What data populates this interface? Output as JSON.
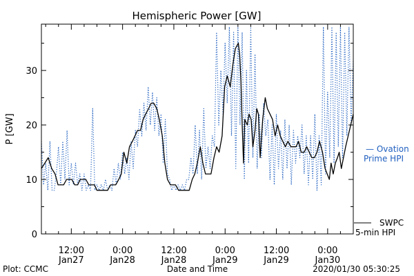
{
  "chart_data": {
    "type": "line",
    "title": "Hemispheric Power [GW]",
    "xlabel": "Date and Time",
    "ylabel": "P [GW]",
    "ylim": [
      0,
      38.5
    ],
    "yticks": [
      0,
      10,
      20,
      30
    ],
    "x_unit": "hours since 2020-01-26 00:00",
    "xlim": [
      29,
      102
    ],
    "xticks": [
      {
        "x": 36,
        "time": "12:00",
        "date": "Jan27"
      },
      {
        "x": 48,
        "time": "0:00",
        "date": "Jan28"
      },
      {
        "x": 60,
        "time": "12:00",
        "date": "Jan28"
      },
      {
        "x": 72,
        "time": "0:00",
        "date": "Jan29"
      },
      {
        "x": 84,
        "time": "12:00",
        "date": "Jan29"
      },
      {
        "x": 96,
        "time": "0:00",
        "date": "Jan30"
      }
    ],
    "grid": false,
    "series": [
      {
        "name": "Ovation Prime HPI",
        "color": "#1f5fbf",
        "style": "dotted",
        "legend_line1": "— Ovation",
        "legend_line2": "Prime HPI",
        "points": [
          [
            29,
            17
          ],
          [
            29.5,
            9
          ],
          [
            30,
            13
          ],
          [
            30.5,
            8
          ],
          [
            31,
            17
          ],
          [
            31.5,
            8
          ],
          [
            32,
            8
          ],
          [
            32.5,
            11
          ],
          [
            33,
            16
          ],
          [
            33.5,
            9
          ],
          [
            34,
            17
          ],
          [
            34.5,
            10
          ],
          [
            35,
            19
          ],
          [
            35.5,
            9
          ],
          [
            36,
            13
          ],
          [
            36.5,
            9
          ],
          [
            37,
            13
          ],
          [
            37.5,
            9
          ],
          [
            38,
            11
          ],
          [
            38.5,
            8
          ],
          [
            39,
            11
          ],
          [
            39.5,
            8
          ],
          [
            40,
            9
          ],
          [
            40.5,
            8
          ],
          [
            41,
            23
          ],
          [
            41.5,
            8
          ],
          [
            42,
            9
          ],
          [
            42.5,
            8
          ],
          [
            43,
            9
          ],
          [
            43.5,
            8
          ],
          [
            44,
            10
          ],
          [
            44.5,
            8
          ],
          [
            45,
            9
          ],
          [
            45.5,
            8
          ],
          [
            46,
            12
          ],
          [
            46.5,
            9
          ],
          [
            47,
            13
          ],
          [
            47.5,
            10
          ],
          [
            48,
            15
          ],
          [
            48.5,
            11
          ],
          [
            49,
            14
          ],
          [
            49.5,
            10
          ],
          [
            50,
            17
          ],
          [
            50.5,
            12
          ],
          [
            51,
            19
          ],
          [
            51.5,
            16
          ],
          [
            52,
            23
          ],
          [
            52.5,
            18
          ],
          [
            53,
            24
          ],
          [
            53.5,
            19
          ],
          [
            54,
            27
          ],
          [
            54.5,
            20
          ],
          [
            55,
            26
          ],
          [
            55.5,
            19
          ],
          [
            56,
            25
          ],
          [
            56.5,
            18
          ],
          [
            57,
            22
          ],
          [
            57.5,
            13
          ],
          [
            58,
            21
          ],
          [
            58.5,
            11
          ],
          [
            59,
            10
          ],
          [
            59.5,
            8
          ],
          [
            60,
            9
          ],
          [
            60.5,
            8
          ],
          [
            61,
            9
          ],
          [
            61.5,
            8
          ],
          [
            62,
            9
          ],
          [
            62.5,
            8
          ],
          [
            63,
            10
          ],
          [
            63.5,
            10
          ],
          [
            64,
            14
          ],
          [
            64.5,
            11
          ],
          [
            65,
            20
          ],
          [
            65.5,
            11
          ],
          [
            66,
            19
          ],
          [
            66.5,
            10
          ],
          [
            67,
            23
          ],
          [
            67.5,
            12
          ],
          [
            68,
            16
          ],
          [
            68.5,
            12
          ],
          [
            69,
            18
          ],
          [
            69.5,
            16
          ],
          [
            70,
            37
          ],
          [
            70.5,
            20
          ],
          [
            71,
            30
          ],
          [
            71.5,
            22
          ],
          [
            72,
            35
          ],
          [
            72.5,
            24
          ],
          [
            73,
            38
          ],
          [
            73.5,
            18
          ],
          [
            74,
            37
          ],
          [
            74.5,
            12
          ],
          [
            75,
            38
          ],
          [
            75.5,
            20
          ],
          [
            76,
            37
          ],
          [
            76.5,
            10
          ],
          [
            77,
            30
          ],
          [
            77.5,
            13
          ],
          [
            78,
            38
          ],
          [
            78.5,
            14
          ],
          [
            79,
            33
          ],
          [
            79.5,
            12
          ],
          [
            80,
            22
          ],
          [
            80.5,
            14
          ],
          [
            81,
            24
          ],
          [
            81.5,
            18
          ],
          [
            82,
            21
          ],
          [
            82.5,
            10
          ],
          [
            83,
            20
          ],
          [
            83.5,
            9
          ],
          [
            84,
            22
          ],
          [
            84.5,
            12
          ],
          [
            85,
            19
          ],
          [
            85.5,
            10
          ],
          [
            86,
            21
          ],
          [
            86.5,
            12
          ],
          [
            87,
            20
          ],
          [
            87.5,
            9
          ],
          [
            88,
            19
          ],
          [
            88.5,
            13
          ],
          [
            89,
            18
          ],
          [
            89.5,
            14
          ],
          [
            90,
            20
          ],
          [
            90.5,
            11
          ],
          [
            91,
            18
          ],
          [
            91.5,
            9
          ],
          [
            92,
            18
          ],
          [
            92.5,
            10
          ],
          [
            93,
            22
          ],
          [
            93.5,
            8
          ],
          [
            94,
            18
          ],
          [
            94.5,
            9
          ],
          [
            95,
            38
          ],
          [
            95.5,
            11
          ],
          [
            96,
            26
          ],
          [
            96.5,
            14
          ],
          [
            97,
            38
          ],
          [
            97.5,
            13
          ],
          [
            98,
            37
          ],
          [
            98.5,
            16
          ],
          [
            99,
            38
          ],
          [
            99.5,
            14
          ],
          [
            100,
            37
          ],
          [
            100.5,
            18
          ],
          [
            101,
            38
          ],
          [
            101.5,
            20
          ],
          [
            102,
            32
          ]
        ]
      },
      {
        "name": "SWPC 5-min HPI",
        "color": "#000000",
        "style": "solid",
        "legend_line1": "SWPC",
        "legend_line2": "5-min HPI",
        "points": [
          [
            29,
            12
          ],
          [
            29.8,
            13
          ],
          [
            30.6,
            14
          ],
          [
            31.4,
            12
          ],
          [
            32.2,
            11
          ],
          [
            32.9,
            9
          ],
          [
            33.5,
            9
          ],
          [
            34.2,
            9
          ],
          [
            34.9,
            10
          ],
          [
            35.5,
            10
          ],
          [
            36.1,
            10
          ],
          [
            36.8,
            9
          ],
          [
            37.5,
            9
          ],
          [
            38.1,
            10
          ],
          [
            38.8,
            10
          ],
          [
            39.4,
            10
          ],
          [
            40.1,
            9
          ],
          [
            40.8,
            9
          ],
          [
            41.4,
            9
          ],
          [
            42,
            8
          ],
          [
            42.6,
            8
          ],
          [
            43.2,
            8
          ],
          [
            43.9,
            8
          ],
          [
            44.5,
            8
          ],
          [
            45.2,
            9
          ],
          [
            45.8,
            9
          ],
          [
            46.4,
            9
          ],
          [
            47.1,
            10
          ],
          [
            47.7,
            11
          ],
          [
            48.3,
            15
          ],
          [
            49,
            13
          ],
          [
            49.6,
            16
          ],
          [
            50.3,
            17
          ],
          [
            50.9,
            18
          ],
          [
            51.5,
            19
          ],
          [
            52.2,
            19
          ],
          [
            52.8,
            21
          ],
          [
            53.4,
            22
          ],
          [
            54.1,
            23
          ],
          [
            54.7,
            24
          ],
          [
            55.3,
            24
          ],
          [
            56,
            23
          ],
          [
            56.6,
            21
          ],
          [
            57.3,
            18
          ],
          [
            57.9,
            13
          ],
          [
            58.5,
            10
          ],
          [
            59.2,
            9
          ],
          [
            59.8,
            9
          ],
          [
            60.4,
            9
          ],
          [
            61.1,
            8
          ],
          [
            61.7,
            8
          ],
          [
            62.3,
            8
          ],
          [
            63,
            8
          ],
          [
            63.6,
            8
          ],
          [
            64.3,
            10
          ],
          [
            64.9,
            11
          ],
          [
            65.5,
            13
          ],
          [
            66.2,
            16
          ],
          [
            66.8,
            13
          ],
          [
            67.4,
            11
          ],
          [
            68.1,
            11
          ],
          [
            68.7,
            11
          ],
          [
            69.4,
            14
          ],
          [
            70,
            16
          ],
          [
            70.6,
            15
          ],
          [
            71.3,
            18
          ],
          [
            71.9,
            27
          ],
          [
            72.5,
            29
          ],
          [
            73.2,
            27
          ],
          [
            73.8,
            31
          ],
          [
            74.4,
            34
          ],
          [
            75.1,
            35
          ],
          [
            75.4,
            33
          ],
          [
            75.7,
            28
          ],
          [
            76,
            20
          ],
          [
            76.3,
            13
          ],
          [
            76.6,
            21
          ],
          [
            77.2,
            20
          ],
          [
            77.6,
            22
          ],
          [
            78.1,
            21
          ],
          [
            78.5,
            16
          ],
          [
            79,
            19
          ],
          [
            79.4,
            23
          ],
          [
            79.8,
            22
          ],
          [
            80.2,
            14
          ],
          [
            80.8,
            21
          ],
          [
            81.4,
            25
          ],
          [
            81.9,
            23
          ],
          [
            82.5,
            22
          ],
          [
            83.1,
            21
          ],
          [
            83.7,
            18
          ],
          [
            84.3,
            20
          ],
          [
            84.9,
            18
          ],
          [
            85.5,
            17
          ],
          [
            86.1,
            16
          ],
          [
            86.7,
            17
          ],
          [
            87.4,
            16
          ],
          [
            88,
            16
          ],
          [
            88.6,
            16
          ],
          [
            89.2,
            17
          ],
          [
            89.8,
            15
          ],
          [
            90.5,
            15
          ],
          [
            91.1,
            16
          ],
          [
            91.7,
            15
          ],
          [
            92.3,
            14
          ],
          [
            92.9,
            14
          ],
          [
            93.5,
            15
          ],
          [
            94.1,
            17
          ],
          [
            94.8,
            15
          ],
          [
            95.4,
            12
          ],
          [
            95.9,
            11
          ],
          [
            96.4,
            10
          ],
          [
            96.8,
            13
          ],
          [
            97.3,
            11
          ],
          [
            97.8,
            13
          ],
          [
            98.3,
            14
          ],
          [
            98.7,
            15
          ],
          [
            99.2,
            12
          ],
          [
            99.7,
            14
          ],
          [
            100.2,
            16
          ],
          [
            100.8,
            18
          ],
          [
            101.4,
            20
          ],
          [
            102,
            22
          ]
        ]
      }
    ]
  },
  "footer": {
    "left": "Plot: CCMC",
    "right": "2020/01/30 05:30:25"
  }
}
